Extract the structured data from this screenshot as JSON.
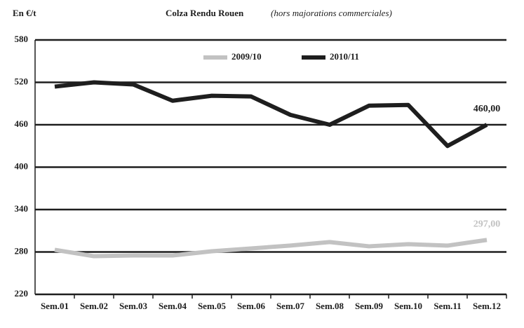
{
  "chart_data": {
    "type": "line",
    "title": "Colza Rendu Rouen",
    "subtitle": "(hors majorations commerciales)",
    "y_label": "En €/t",
    "categories": [
      "Sem.01",
      "Sem.02",
      "Sem.03",
      "Sem.04",
      "Sem.05",
      "Sem.06",
      "Sem.07",
      "Sem.08",
      "Sem.09",
      "Sem.10",
      "Sem.11",
      "Sem.12"
    ],
    "series": [
      {
        "name": "2009/10",
        "color": "#c2c2c2",
        "values": [
          283,
          274,
          275,
          275,
          281,
          285,
          289,
          294,
          288,
          291,
          289,
          297
        ],
        "value_labels": [
          null,
          null,
          null,
          null,
          null,
          null,
          null,
          null,
          null,
          null,
          null,
          "297,00"
        ]
      },
      {
        "name": "2010/11",
        "color": "#1e1e1e",
        "values": [
          514,
          520,
          517,
          494,
          501,
          500,
          474,
          460,
          487,
          488,
          430,
          460
        ],
        "value_labels": [
          null,
          null,
          null,
          null,
          null,
          null,
          null,
          null,
          null,
          null,
          null,
          "460,00"
        ]
      }
    ],
    "ylim": [
      220,
      580
    ],
    "yticks": [
      220,
      280,
      340,
      400,
      460,
      520,
      580
    ],
    "grid": true
  }
}
